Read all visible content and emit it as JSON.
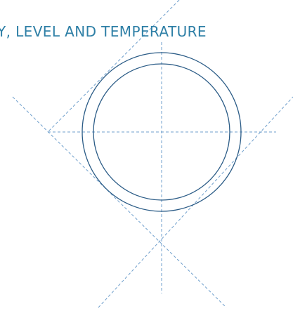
{
  "heading": {
    "text": "Y, LEVEL AND TEMPERATURE"
  },
  "colors": {
    "heading": "#2e7fa6",
    "rings": "#2a5b86",
    "guides": "#6f9fcc"
  }
}
